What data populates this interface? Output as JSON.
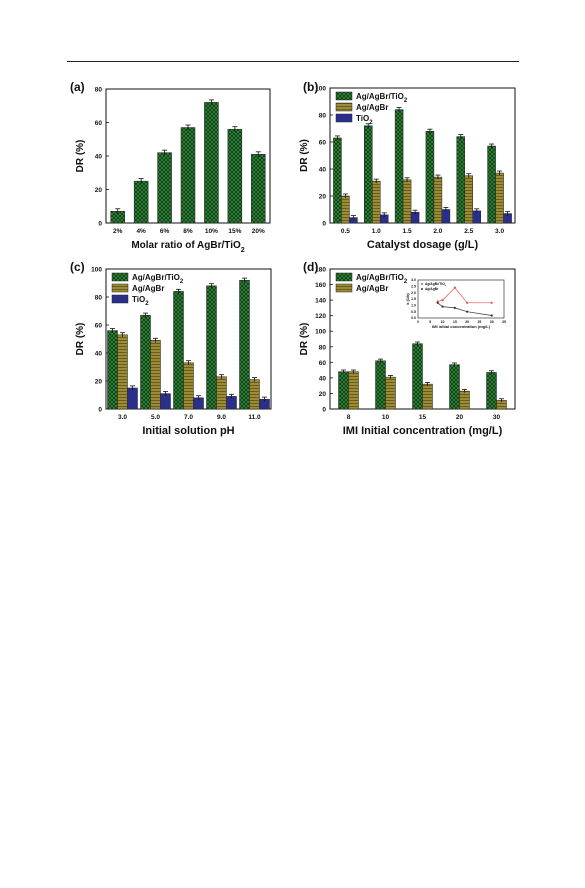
{
  "colors": {
    "green": "#2e8b3a",
    "green_hatch": "#0f2a0f",
    "olive": "#9c8c34",
    "olive_hatch": "#5a4f18",
    "blue": "#2a2f8c"
  },
  "chart_data": [
    {
      "type": "bar",
      "panel_label": "(a)",
      "xlabel": "Molar ratio of AgBr/TiO2",
      "ylabel": "DR (%)",
      "ylim": [
        0,
        80
      ],
      "yticks": [
        "0",
        "20",
        "40",
        "60",
        "80"
      ],
      "categories": [
        "2%",
        "4%",
        "6%",
        "8%",
        "10%",
        "15%",
        "20%"
      ],
      "series": [
        {
          "values": [
            7,
            25,
            42,
            57,
            72,
            56,
            41
          ]
        }
      ]
    },
    {
      "type": "bar",
      "panel_label": "(b)",
      "xlabel": "Catalyst dosage  (g/L)",
      "ylabel": "DR  (%)",
      "ylim": [
        0,
        100
      ],
      "yticks": [
        "0",
        "20",
        "40",
        "60",
        "80",
        "100"
      ],
      "categories": [
        "0.5",
        "1.0",
        "1.5",
        "2.0",
        "2.5",
        "3.0"
      ],
      "series": [
        {
          "name": "Ag/AgBr/TiO2",
          "values": [
            63,
            72,
            84,
            68,
            64,
            57
          ]
        },
        {
          "name": "Ag/AgBr",
          "values": [
            20,
            31,
            32,
            34,
            35,
            37
          ]
        },
        {
          "name": "TiO2",
          "values": [
            4,
            6,
            8,
            10,
            9,
            7
          ]
        }
      ]
    },
    {
      "type": "bar",
      "panel_label": "(c)",
      "xlabel": "Initial solution pH",
      "ylabel": "DR  (%)",
      "ylim": [
        0,
        100
      ],
      "yticks": [
        "0",
        "20",
        "40",
        "60",
        "80",
        "100"
      ],
      "categories": [
        "3.0",
        "5.0",
        "7.0",
        "9.0",
        "11.0"
      ],
      "series": [
        {
          "name": "Ag/AgBr/TiO2",
          "values": [
            56,
            67,
            84,
            88,
            92
          ]
        },
        {
          "name": "Ag/AgBr",
          "values": [
            53,
            49,
            33,
            23,
            21
          ]
        },
        {
          "name": "TiO2",
          "values": [
            15,
            11,
            8,
            9,
            7
          ]
        }
      ]
    },
    {
      "type": "bar",
      "panel_label": "(d)",
      "xlabel": "IMI Initial concentration  (mg/L)",
      "ylabel": "DR  (%)",
      "ylim": [
        0,
        180
      ],
      "yticks": [
        "0",
        "20",
        "40",
        "60",
        "80",
        "100",
        "120",
        "140",
        "160",
        "180"
      ],
      "categories": [
        "8",
        "10",
        "15",
        "20",
        "30"
      ],
      "series": [
        {
          "name": "Ag/AgBr/TiO2",
          "values": [
            48,
            62,
            84,
            57,
            47
          ]
        },
        {
          "name": "Ag/AgBr",
          "values": [
            48,
            41,
            32,
            23,
            11
          ]
        }
      ],
      "inset": {
        "type": "line",
        "ylabel": "k (1/h)",
        "xlabel": "IMI initial concentration    (mg/L)",
        "x": [
          8,
          10,
          15,
          20,
          30
        ],
        "xticks": [
          "0",
          "5",
          "10",
          "15",
          "20",
          "25",
          "30",
          "35"
        ],
        "yticks": [
          "0.0",
          "0.5",
          "1.0",
          "1.5",
          "2.0",
          "2.5",
          "3.0"
        ],
        "xlim": [
          0,
          35
        ],
        "ylim": [
          0,
          3.0
        ],
        "series": [
          {
            "name": "Ag/AgBr/TiO2",
            "values": [
              1.3,
              1.4,
              2.4,
              1.2,
              1.2
            ]
          },
          {
            "name": "Ag/AgBr",
            "values": [
              1.2,
              0.9,
              0.8,
              0.5,
              0.2
            ]
          }
        ]
      }
    }
  ]
}
